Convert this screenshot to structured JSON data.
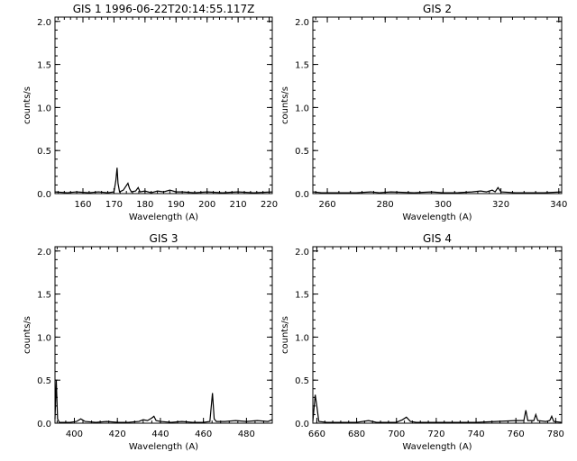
{
  "chart_data": [
    {
      "type": "line",
      "title": "GIS 1 1996-06-22T20:14:55.117Z",
      "xlabel": "Wavelength (A)",
      "ylabel": "counts/s",
      "xlim": [
        151,
        221
      ],
      "ylim": [
        0,
        2.05
      ],
      "xticks": [
        160,
        170,
        180,
        190,
        200,
        210,
        220
      ],
      "yticks": [
        0.0,
        0.5,
        1.0,
        1.5,
        2.0
      ],
      "series": [
        {
          "x": [
            151,
            155,
            158,
            162,
            165,
            168,
            170.0,
            170.6,
            171.0,
            171.3,
            171.8,
            173,
            174.5,
            175.0,
            175.6,
            177,
            177.8,
            178.4,
            180,
            182,
            184,
            186,
            188,
            190,
            192,
            196,
            200,
            205,
            210,
            215,
            221
          ],
          "y": [
            0.02,
            0.01,
            0.02,
            0.01,
            0.02,
            0.01,
            0.02,
            0.15,
            0.3,
            0.12,
            0.02,
            0.04,
            0.12,
            0.06,
            0.02,
            0.03,
            0.07,
            0.02,
            0.03,
            0.01,
            0.03,
            0.02,
            0.04,
            0.02,
            0.02,
            0.01,
            0.02,
            0.01,
            0.02,
            0.01,
            0.02
          ]
        }
      ]
    },
    {
      "type": "line",
      "title": "GIS 2",
      "xlabel": "Wavelength (A)",
      "ylabel": "counts/s",
      "xlim": [
        255,
        341
      ],
      "ylim": [
        0,
        2.05
      ],
      "xticks": [
        260,
        280,
        300,
        320,
        340
      ],
      "yticks": [
        0.0,
        0.5,
        1.0,
        1.5,
        2.0
      ],
      "series": [
        {
          "x": [
            255,
            258,
            262,
            270,
            275,
            278,
            282,
            290,
            296,
            300,
            305,
            310,
            313,
            315,
            317,
            318,
            319,
            320,
            325,
            330,
            335,
            341
          ],
          "y": [
            0.02,
            0.01,
            0.01,
            0.01,
            0.02,
            0.01,
            0.02,
            0.01,
            0.02,
            0.01,
            0.01,
            0.02,
            0.03,
            0.02,
            0.04,
            0.02,
            0.07,
            0.02,
            0.01,
            0.01,
            0.01,
            0.02
          ]
        }
      ]
    },
    {
      "type": "line",
      "title": "GIS 3",
      "xlabel": "Wavelength (A)",
      "ylabel": "counts/s",
      "xlim": [
        391,
        492
      ],
      "ylim": [
        0,
        2.05
      ],
      "xticks": [
        400,
        420,
        440,
        460,
        480
      ],
      "yticks": [
        0.0,
        0.5,
        1.0,
        1.5,
        2.0
      ],
      "series": [
        {
          "x": [
            391,
            391.6,
            392.2,
            393,
            398,
            401,
            403,
            405,
            410,
            415,
            420,
            425,
            430,
            432,
            434,
            436,
            437,
            438,
            440,
            445,
            450,
            455,
            460,
            463,
            464.2,
            465,
            466,
            470,
            475,
            480,
            485,
            490,
            492
          ],
          "y": [
            0.05,
            0.5,
            0.05,
            0.01,
            0.01,
            0.02,
            0.05,
            0.02,
            0.01,
            0.02,
            0.01,
            0.01,
            0.02,
            0.04,
            0.03,
            0.06,
            0.08,
            0.03,
            0.02,
            0.01,
            0.02,
            0.01,
            0.01,
            0.02,
            0.35,
            0.05,
            0.02,
            0.02,
            0.03,
            0.02,
            0.03,
            0.02,
            0.04
          ]
        }
      ]
    },
    {
      "type": "line",
      "title": "GIS 4",
      "xlabel": "Wavelength (A)",
      "ylabel": "counts/s",
      "xlim": [
        658,
        783
      ],
      "ylim": [
        0,
        2.05
      ],
      "xticks": [
        660,
        680,
        700,
        720,
        740,
        760,
        780
      ],
      "yticks": [
        0.0,
        0.5,
        1.0,
        1.5,
        2.0
      ],
      "series": [
        {
          "x": [
            658,
            659.2,
            660,
            661,
            665,
            670,
            680,
            686,
            690,
            700,
            703,
            705,
            707,
            710,
            720,
            730,
            740,
            750,
            760,
            764,
            765,
            766,
            769,
            770,
            771,
            775,
            777,
            778,
            779,
            783
          ],
          "y": [
            0.02,
            0.33,
            0.2,
            0.02,
            0.01,
            0.01,
            0.01,
            0.03,
            0.01,
            0.01,
            0.04,
            0.07,
            0.02,
            0.01,
            0.01,
            0.01,
            0.01,
            0.02,
            0.03,
            0.03,
            0.15,
            0.03,
            0.03,
            0.1,
            0.03,
            0.02,
            0.03,
            0.08,
            0.02,
            0.01
          ]
        }
      ]
    }
  ]
}
